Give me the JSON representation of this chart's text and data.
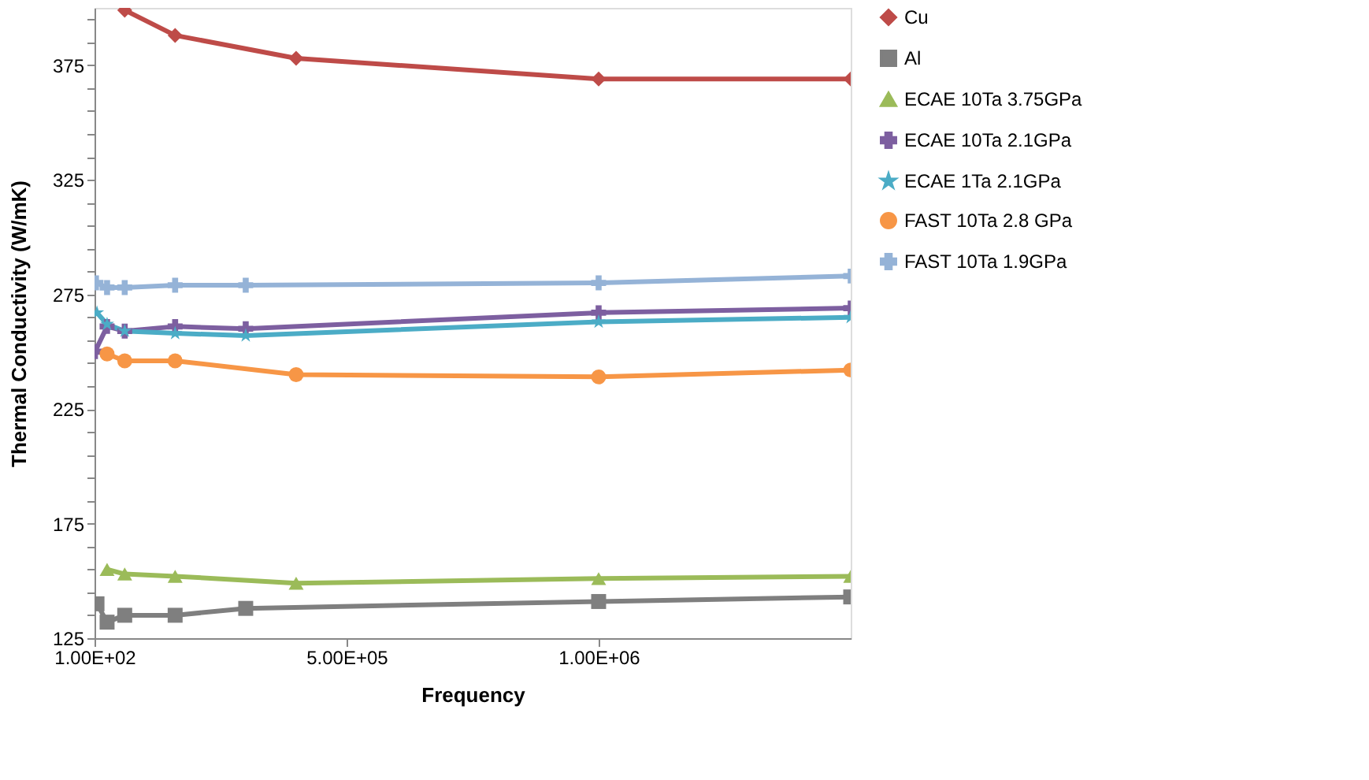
{
  "chart_data": {
    "type": "line",
    "xlabel": "Frequency",
    "ylabel": "Thermal Conductivity (W/mK)",
    "xlim": [
      100,
      1500000
    ],
    "xticks": [
      {
        "value": 100,
        "label": "1.00E+02"
      },
      {
        "value": 500000,
        "label": "5.00E+05"
      },
      {
        "value": 1000000,
        "label": "1.00E+06"
      }
    ],
    "ylim": [
      125,
      400
    ],
    "yticks": [
      125,
      {
        "value": 135,
        "label": null
      },
      {
        "value": 145,
        "label": null
      },
      {
        "value": 155,
        "label": null
      },
      {
        "value": 165,
        "label": null
      },
      175,
      {
        "value": 185,
        "label": null
      },
      {
        "value": 195,
        "label": null
      },
      {
        "value": 205,
        "label": null
      },
      {
        "value": 215,
        "label": null
      },
      225,
      {
        "value": 235,
        "label": null
      },
      {
        "value": 245,
        "label": null
      },
      {
        "value": 255,
        "label": null
      },
      {
        "value": 265,
        "label": null
      },
      275,
      {
        "value": 285,
        "label": null
      },
      {
        "value": 295,
        "label": null
      },
      {
        "value": 305,
        "label": null
      },
      {
        "value": 315,
        "label": null
      },
      325,
      {
        "value": 335,
        "label": null
      },
      {
        "value": 345,
        "label": null
      },
      {
        "value": 355,
        "label": null
      },
      {
        "value": 365,
        "label": null
      },
      375,
      {
        "value": 385,
        "label": null
      },
      {
        "value": 395,
        "label": null
      }
    ],
    "grid": false,
    "legend": "right",
    "series": [
      {
        "name": "Cu",
        "color": "#be4b48",
        "marker": "diamond",
        "x": [
          60000,
          160000,
          400000,
          1000000,
          1500000
        ],
        "values": [
          399,
          388,
          378,
          369,
          369
        ]
      },
      {
        "name": "Al",
        "color": "#7f7f7f",
        "marker": "square",
        "x": [
          5000,
          25000,
          60000,
          160000,
          300000,
          1000000,
          1500000
        ],
        "values": [
          140,
          132,
          135,
          135,
          138,
          141,
          143
        ]
      },
      {
        "name": "ECAE 10Ta 3.75GPa",
        "color": "#9bbb59",
        "marker": "triangle",
        "x": [
          25000,
          60000,
          160000,
          400000,
          1000000,
          1500000
        ],
        "values": [
          155,
          153,
          152,
          149,
          151,
          152
        ]
      },
      {
        "name": "ECAE 10Ta 2.1GPa",
        "color": "#7d5fa0",
        "marker": "cross",
        "x": [
          1000,
          25000,
          60000,
          160000,
          300000,
          1000000,
          1500000
        ],
        "values": [
          250,
          261,
          259,
          261,
          260,
          267,
          269
        ]
      },
      {
        "name": "ECAE 1Ta 2.1GPa",
        "color": "#4bacc6",
        "marker": "star",
        "x": [
          5000,
          25000,
          60000,
          160000,
          300000,
          1000000,
          1500000
        ],
        "values": [
          267,
          262,
          259,
          258,
          257,
          263,
          265
        ]
      },
      {
        "name": "FAST 10Ta 2.8 GPa",
        "color": "#f79646",
        "marker": "circle",
        "x": [
          25000,
          60000,
          160000,
          400000,
          1000000,
          1500000
        ],
        "values": [
          249,
          246,
          246,
          240,
          239,
          242
        ]
      },
      {
        "name": "FAST 10Ta 1.9GPa",
        "color": "#95b3d7",
        "marker": "cross",
        "x": [
          3000,
          25000,
          60000,
          160000,
          300000,
          1000000,
          1500000
        ],
        "values": [
          280,
          278,
          278,
          279,
          279,
          280,
          283
        ]
      }
    ]
  }
}
